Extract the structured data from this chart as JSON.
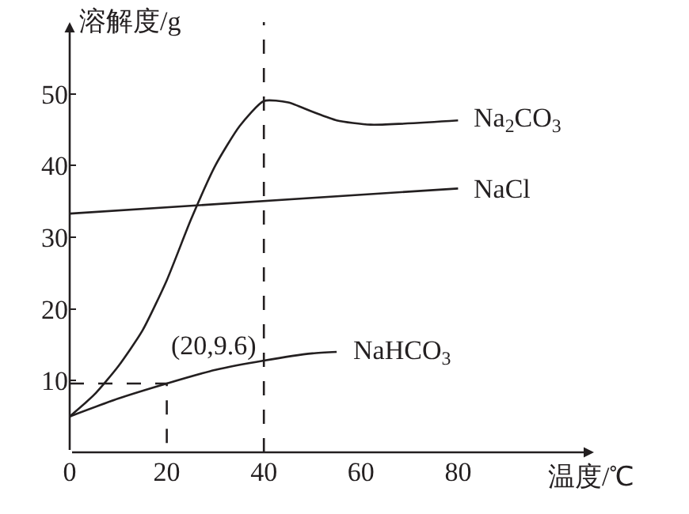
{
  "chart_data": {
    "type": "line",
    "xlabel": "温度/℃",
    "ylabel": "溶解度/g",
    "xlim": [
      0,
      108
    ],
    "ylim": [
      0,
      60
    ],
    "xticks": [
      0,
      20,
      40,
      60,
      80
    ],
    "yticks": [
      {
        "value": 0,
        "label": null
      },
      10,
      20,
      30,
      40,
      50
    ],
    "legend": false,
    "marker": "none",
    "line_style": "solid",
    "series": [
      {
        "name": "Na$_{2}$CO$_{3}$",
        "color": "#231f20",
        "x": [
          0,
          5,
          10,
          15,
          20,
          25,
          30,
          35,
          40,
          45,
          50,
          55,
          62,
          80
        ],
        "values": [
          5,
          8,
          12,
          17,
          24,
          32.5,
          40,
          45.5,
          49,
          48.8,
          47.5,
          46.3,
          45.7,
          46.3
        ]
      },
      {
        "name": "NaCl",
        "color": "#231f20",
        "x": [
          0,
          80
        ],
        "values": [
          33.3,
          36.8
        ]
      },
      {
        "name": "NaHCO$_{3}$",
        "color": "#231f20",
        "x": [
          0,
          10,
          20,
          30,
          40,
          50,
          55
        ],
        "values": [
          5,
          7.5,
          9.6,
          11.5,
          12.8,
          13.8,
          14
        ]
      },
      {
        "color": "#231f20",
        "line_style": "dashed",
        "x": [
          0,
          20,
          20
        ],
        "values": [
          9.6,
          9.6,
          0
        ]
      }
    ],
    "ref_lines": [
      {
        "axis": "x",
        "value": 40,
        "color": "#231f20",
        "line_style": "dashed"
      }
    ],
    "annotations": [
      {
        "text": "(20,9.6)",
        "x": 20,
        "y": 9.6
      }
    ]
  }
}
